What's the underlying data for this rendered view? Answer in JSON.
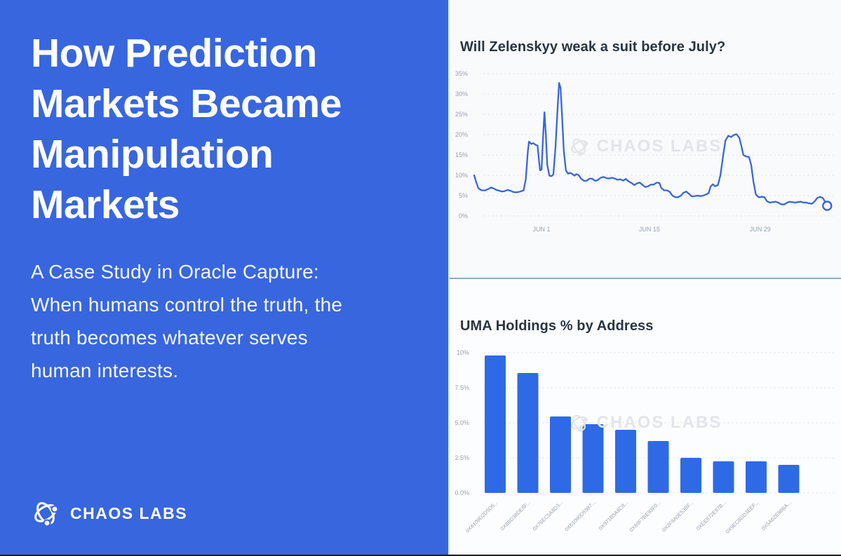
{
  "left_panel": {
    "title_lines": [
      "How Prediction",
      "Markets Became",
      "Manipulation",
      "Markets"
    ],
    "subtitle_lines": [
      "A Case Study in Oracle Capture:",
      "When humans control the truth, the",
      "truth becomes whatever serves",
      "human interests."
    ],
    "logo_text": "CHAOS LABS",
    "background": "#3866DE"
  },
  "watermark": {
    "text": "CHAOS LABS",
    "color": "#E2E5E9"
  },
  "colors": {
    "brand_blue": "#3866DE",
    "line_blue": "#3A66D8",
    "bar_blue": "#2E6AE5",
    "grid": "#E3E6EB",
    "tick_text": "#98A2B0",
    "chart_title_text": "#2B3440",
    "top_card_bg": "#F8FAFB",
    "bottom_card_bg": "#FCFDFE",
    "divider": "#93A9C7"
  },
  "chart_data": [
    {
      "type": "line",
      "title": "Will Zelenskyy weak a suit before July?",
      "xlabel": "",
      "ylabel": "",
      "ylim": [
        0,
        35
      ],
      "grid": true,
      "legend": "none",
      "y_ticks": [
        {
          "label": "35%",
          "value": 35
        },
        {
          "label": "30%",
          "value": 30
        },
        {
          "label": "25%",
          "value": 25
        },
        {
          "label": "20%",
          "value": 20
        },
        {
          "label": "15%",
          "value": 15
        },
        {
          "label": "10%",
          "value": 10
        },
        {
          "label": "5%",
          "value": 5
        },
        {
          "label": "0%",
          "value": 0
        }
      ],
      "x_ticks": [
        {
          "label": "JUN 1",
          "pos": 0.188
        },
        {
          "label": "JUN 15",
          "pos": 0.489
        },
        {
          "label": "JUN 29",
          "pos": 0.798
        }
      ],
      "end_marker": "open-circle",
      "points": [
        [
          0.0,
          10.0
        ],
        [
          0.006,
          8.2
        ],
        [
          0.012,
          6.8
        ],
        [
          0.021,
          6.3
        ],
        [
          0.031,
          6.3
        ],
        [
          0.039,
          6.6
        ],
        [
          0.047,
          7.0
        ],
        [
          0.054,
          6.8
        ],
        [
          0.062,
          6.4
        ],
        [
          0.07,
          6.2
        ],
        [
          0.078,
          6.0
        ],
        [
          0.085,
          6.1
        ],
        [
          0.093,
          6.4
        ],
        [
          0.101,
          6.2
        ],
        [
          0.109,
          5.9
        ],
        [
          0.117,
          5.8
        ],
        [
          0.124,
          5.9
        ],
        [
          0.132,
          6.1
        ],
        [
          0.138,
          6.3
        ],
        [
          0.144,
          9.0
        ],
        [
          0.15,
          16.0
        ],
        [
          0.153,
          18.3
        ],
        [
          0.159,
          17.7
        ],
        [
          0.165,
          17.9
        ],
        [
          0.171,
          17.5
        ],
        [
          0.177,
          17.3
        ],
        [
          0.181,
          13.5
        ],
        [
          0.184,
          11.2
        ],
        [
          0.188,
          11.4
        ],
        [
          0.192,
          19.0
        ],
        [
          0.196,
          25.5
        ],
        [
          0.2,
          20.0
        ],
        [
          0.204,
          12.5
        ],
        [
          0.21,
          9.9
        ],
        [
          0.216,
          9.8
        ],
        [
          0.221,
          10.2
        ],
        [
          0.227,
          17.0
        ],
        [
          0.233,
          27.0
        ],
        [
          0.237,
          32.7
        ],
        [
          0.241,
          31.5
        ],
        [
          0.245,
          25.0
        ],
        [
          0.25,
          16.0
        ],
        [
          0.256,
          11.2
        ],
        [
          0.262,
          10.4
        ],
        [
          0.268,
          10.6
        ],
        [
          0.274,
          10.3
        ],
        [
          0.28,
          9.9
        ],
        [
          0.285,
          10.3
        ],
        [
          0.291,
          10.1
        ],
        [
          0.299,
          9.1
        ],
        [
          0.307,
          8.6
        ],
        [
          0.315,
          8.7
        ],
        [
          0.322,
          9.2
        ],
        [
          0.33,
          9.1
        ],
        [
          0.338,
          8.6
        ],
        [
          0.346,
          8.9
        ],
        [
          0.353,
          9.4
        ],
        [
          0.361,
          9.6
        ],
        [
          0.369,
          9.3
        ],
        [
          0.377,
          9.2
        ],
        [
          0.384,
          9.4
        ],
        [
          0.392,
          9.2
        ],
        [
          0.4,
          8.9
        ],
        [
          0.408,
          9.0
        ],
        [
          0.416,
          8.7
        ],
        [
          0.423,
          9.1
        ],
        [
          0.431,
          8.5
        ],
        [
          0.439,
          8.1
        ],
        [
          0.447,
          7.6
        ],
        [
          0.454,
          8.0
        ],
        [
          0.462,
          8.2
        ],
        [
          0.47,
          7.6
        ],
        [
          0.478,
          7.1
        ],
        [
          0.485,
          7.3
        ],
        [
          0.493,
          7.7
        ],
        [
          0.501,
          7.7
        ],
        [
          0.509,
          8.2
        ],
        [
          0.517,
          8.1
        ],
        [
          0.522,
          6.9
        ],
        [
          0.53,
          6.3
        ],
        [
          0.538,
          6.3
        ],
        [
          0.546,
          5.9
        ],
        [
          0.553,
          5.0
        ],
        [
          0.561,
          4.6
        ],
        [
          0.569,
          4.6
        ],
        [
          0.577,
          5.0
        ],
        [
          0.584,
          5.7
        ],
        [
          0.592,
          6.0
        ],
        [
          0.6,
          5.4
        ],
        [
          0.608,
          4.8
        ],
        [
          0.616,
          4.9
        ],
        [
          0.623,
          5.0
        ],
        [
          0.631,
          4.9
        ],
        [
          0.639,
          5.0
        ],
        [
          0.647,
          5.3
        ],
        [
          0.654,
          5.6
        ],
        [
          0.66,
          7.3
        ],
        [
          0.666,
          7.8
        ],
        [
          0.672,
          7.3
        ],
        [
          0.68,
          7.6
        ],
        [
          0.687,
          10.0
        ],
        [
          0.695,
          15.0
        ],
        [
          0.701,
          18.5
        ],
        [
          0.709,
          19.7
        ],
        [
          0.717,
          19.4
        ],
        [
          0.724,
          19.9
        ],
        [
          0.732,
          20.1
        ],
        [
          0.74,
          19.2
        ],
        [
          0.746,
          17.0
        ],
        [
          0.751,
          15.0
        ],
        [
          0.759,
          14.6
        ],
        [
          0.767,
          14.5
        ],
        [
          0.773,
          12.5
        ],
        [
          0.779,
          8.5
        ],
        [
          0.786,
          5.3
        ],
        [
          0.794,
          4.6
        ],
        [
          0.802,
          4.7
        ],
        [
          0.81,
          4.6
        ],
        [
          0.817,
          3.6
        ],
        [
          0.825,
          3.3
        ],
        [
          0.833,
          3.4
        ],
        [
          0.841,
          3.5
        ],
        [
          0.848,
          3.3
        ],
        [
          0.856,
          2.9
        ],
        [
          0.864,
          2.8
        ],
        [
          0.872,
          3.2
        ],
        [
          0.88,
          3.5
        ],
        [
          0.887,
          3.4
        ],
        [
          0.895,
          3.3
        ],
        [
          0.903,
          3.4
        ],
        [
          0.911,
          3.5
        ],
        [
          0.918,
          3.3
        ],
        [
          0.926,
          3.3
        ],
        [
          0.934,
          3.1
        ],
        [
          0.942,
          3.0
        ],
        [
          0.95,
          3.6
        ],
        [
          0.957,
          4.4
        ],
        [
          0.965,
          4.7
        ],
        [
          0.973,
          4.4
        ],
        [
          0.979,
          3.5
        ],
        [
          0.985,
          2.5
        ]
      ]
    },
    {
      "type": "bar",
      "title": "UMA Holdings % by Address",
      "xlabel": "",
      "ylabel": "",
      "ylim": [
        0,
        10.6
      ],
      "grid": true,
      "legend": "none",
      "y_ticks": [
        {
          "label": "10%",
          "value": 10
        },
        {
          "label": "7.5%",
          "value": 7.5
        },
        {
          "label": "5.0%",
          "value": 5
        },
        {
          "label": "2.5%",
          "value": 2.5
        },
        {
          "label": "0.0%",
          "value": 0
        }
      ],
      "categories": [
        "0X6109D2D5D6...",
        "0X8BD38DE8F...",
        "0X76EC5A8D3...",
        "0X61090D5987...",
        "0X971B5A8C8...",
        "0X69F7BE93F0...",
        "0X2F9A0E53BF...",
        "0XEE872E97B...",
        "0X9EC8DD3EEF...",
        "0X5A62E98BA..."
      ],
      "values": [
        9.8,
        8.55,
        5.45,
        4.9,
        4.5,
        3.7,
        2.5,
        2.25,
        2.25,
        2.0
      ]
    }
  ]
}
